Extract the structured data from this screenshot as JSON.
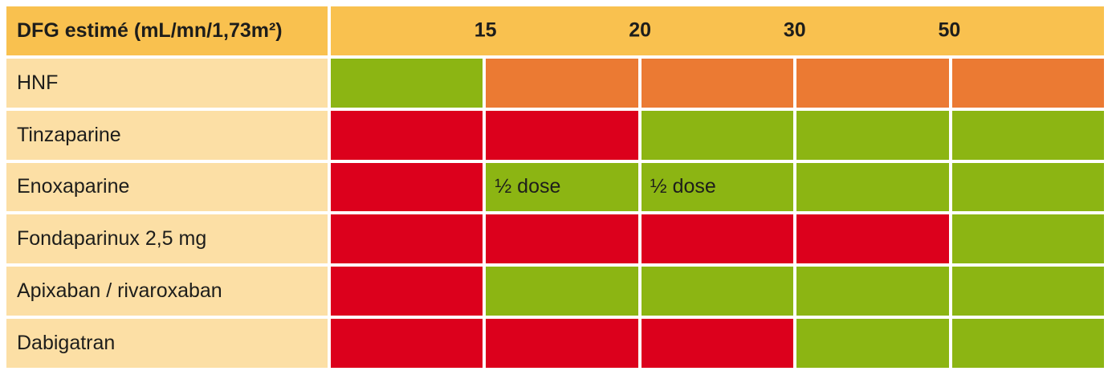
{
  "header": {
    "label": "DFG estimé (mL/mn/1,73m²)",
    "thresholds": [
      "15",
      "20",
      "30",
      "50"
    ]
  },
  "palette": {
    "background": "#FFFFFF",
    "header_bg": "#F9C14F",
    "row_label_bg": "#FCDFA5",
    "green": "#8CB513",
    "orange": "#EB7A33",
    "red": "#DC001C",
    "text": "#1D1D1B"
  },
  "rows": [
    {
      "name": "hnf",
      "label": "HNF",
      "cells": [
        {
          "status": "green",
          "bg": "#8CB513",
          "text": ""
        },
        {
          "status": "orange",
          "bg": "#EB7A33",
          "text": ""
        },
        {
          "status": "orange",
          "bg": "#EB7A33",
          "text": ""
        },
        {
          "status": "orange",
          "bg": "#EB7A33",
          "text": ""
        },
        {
          "status": "orange",
          "bg": "#EB7A33",
          "text": ""
        }
      ]
    },
    {
      "name": "tinzaparine",
      "label": "Tinzaparine",
      "cells": [
        {
          "status": "red",
          "bg": "#DC001C",
          "text": ""
        },
        {
          "status": "red",
          "bg": "#DC001C",
          "text": ""
        },
        {
          "status": "green",
          "bg": "#8CB513",
          "text": ""
        },
        {
          "status": "green",
          "bg": "#8CB513",
          "text": ""
        },
        {
          "status": "green",
          "bg": "#8CB513",
          "text": ""
        }
      ]
    },
    {
      "name": "enoxaparine",
      "label": "Enoxaparine",
      "cells": [
        {
          "status": "red",
          "bg": "#DC001C",
          "text": ""
        },
        {
          "status": "green",
          "bg": "#8CB513",
          "text": "½ dose"
        },
        {
          "status": "green",
          "bg": "#8CB513",
          "text": "½ dose"
        },
        {
          "status": "green",
          "bg": "#8CB513",
          "text": ""
        },
        {
          "status": "green",
          "bg": "#8CB513",
          "text": ""
        }
      ]
    },
    {
      "name": "fondaparinux",
      "label": "Fondaparinux 2,5 mg",
      "cells": [
        {
          "status": "red",
          "bg": "#DC001C",
          "text": ""
        },
        {
          "status": "red",
          "bg": "#DC001C",
          "text": ""
        },
        {
          "status": "red",
          "bg": "#DC001C",
          "text": ""
        },
        {
          "status": "red",
          "bg": "#DC001C",
          "text": ""
        },
        {
          "status": "green",
          "bg": "#8CB513",
          "text": ""
        }
      ]
    },
    {
      "name": "apixaban-rivaroxaban",
      "label": "Apixaban / rivaroxaban",
      "cells": [
        {
          "status": "red",
          "bg": "#DC001C",
          "text": ""
        },
        {
          "status": "green",
          "bg": "#8CB513",
          "text": ""
        },
        {
          "status": "green",
          "bg": "#8CB513",
          "text": ""
        },
        {
          "status": "green",
          "bg": "#8CB513",
          "text": ""
        },
        {
          "status": "green",
          "bg": "#8CB513",
          "text": ""
        }
      ]
    },
    {
      "name": "dabigatran",
      "label": "Dabigatran",
      "cells": [
        {
          "status": "red",
          "bg": "#DC001C",
          "text": ""
        },
        {
          "status": "red",
          "bg": "#DC001C",
          "text": ""
        },
        {
          "status": "red",
          "bg": "#DC001C",
          "text": ""
        },
        {
          "status": "green",
          "bg": "#8CB513",
          "text": ""
        },
        {
          "status": "green",
          "bg": "#8CB513",
          "text": ""
        }
      ]
    }
  ],
  "chart_data": {
    "type": "table",
    "title": "DFG estimé (mL/mn/1,73m²)",
    "boundary_labels": [
      "15",
      "20",
      "30",
      "50"
    ],
    "n_value_columns": 5,
    "column_bands": [
      "<15",
      "15-20",
      "20-30",
      "30-50",
      ">50"
    ],
    "rows": [
      {
        "label": "HNF",
        "values": [
          "green",
          "orange",
          "orange",
          "orange",
          "orange"
        ],
        "cell_texts": [
          "",
          "",
          "",
          "",
          ""
        ]
      },
      {
        "label": "Tinzaparine",
        "values": [
          "red",
          "red",
          "green",
          "green",
          "green"
        ],
        "cell_texts": [
          "",
          "",
          "",
          "",
          ""
        ]
      },
      {
        "label": "Enoxaparine",
        "values": [
          "red",
          "green",
          "green",
          "green",
          "green"
        ],
        "cell_texts": [
          "",
          "½ dose",
          "½ dose",
          "",
          ""
        ]
      },
      {
        "label": "Fondaparinux 2,5 mg",
        "values": [
          "red",
          "red",
          "red",
          "red",
          "green"
        ],
        "cell_texts": [
          "",
          "",
          "",
          "",
          ""
        ]
      },
      {
        "label": "Apixaban / rivaroxaban",
        "values": [
          "red",
          "green",
          "green",
          "green",
          "green"
        ],
        "cell_texts": [
          "",
          "",
          "",
          "",
          ""
        ]
      },
      {
        "label": "Dabigatran",
        "values": [
          "red",
          "red",
          "red",
          "green",
          "green"
        ],
        "cell_texts": [
          "",
          "",
          "",
          "",
          ""
        ]
      }
    ],
    "color_coding_hex": {
      "green": "#8CB513",
      "orange": "#EB7A33",
      "red": "#DC001C"
    },
    "legend_position": "none",
    "grid": "white gaps between cells"
  }
}
